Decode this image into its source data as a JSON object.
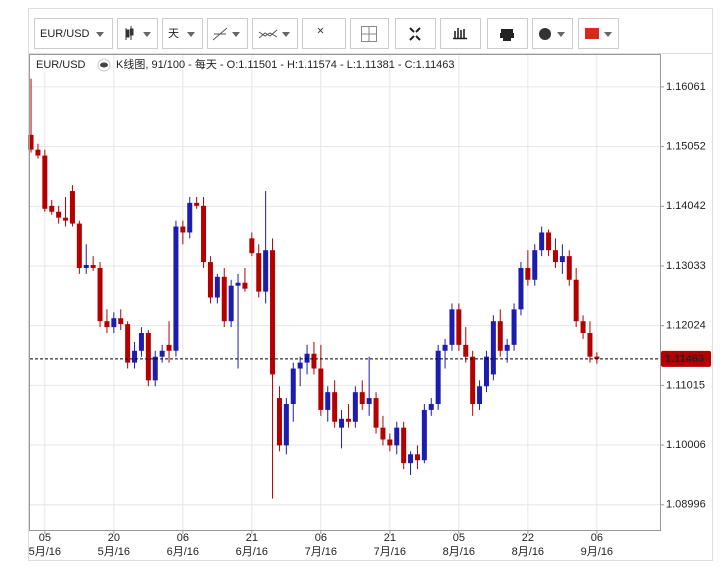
{
  "toolbar": {
    "symbol": "EUR/USD",
    "period": "天"
  },
  "chart_data": {
    "type": "candlestick",
    "legend_symbol": "EUR/USD",
    "legend_text": "K线图, 91/100 - 每天 - O:1.11501 - H:1.11574 - L:1.11381 - C:1.11463",
    "up_color": "#1c1cae",
    "down_color": "#b40000",
    "grid": true,
    "ylim": [
      1.0857,
      1.166
    ],
    "yticks": [
      1.08996,
      1.10006,
      1.11015,
      1.12024,
      1.13033,
      1.14042,
      1.15052,
      1.16061
    ],
    "xlim": [
      -0.15,
      91.15
    ],
    "xticks": [
      {
        "value": 2,
        "label": "05"
      },
      {
        "value": 12,
        "label": "20"
      },
      {
        "value": 22,
        "label": "06"
      },
      {
        "value": 32,
        "label": "21"
      },
      {
        "value": 42,
        "label": "06"
      },
      {
        "value": 52,
        "label": "21"
      },
      {
        "value": 62,
        "label": "05"
      },
      {
        "value": 72,
        "label": "22"
      },
      {
        "value": 82,
        "label": "06"
      }
    ],
    "xtick_months": [
      "5月/16",
      "5月/16",
      "6月/16",
      "6月/16",
      "7月/16",
      "7月/16",
      "8月/16",
      "8月/16",
      "9月/16"
    ],
    "last_price": 1.11463,
    "candles": [
      [
        1.1525,
        1.162,
        1.1495,
        1.15
      ],
      [
        1.15,
        1.151,
        1.1485,
        1.149
      ],
      [
        1.149,
        1.15,
        1.1395,
        1.14
      ],
      [
        1.1405,
        1.1415,
        1.139,
        1.1395
      ],
      [
        1.1395,
        1.1405,
        1.1375,
        1.1385
      ],
      [
        1.1385,
        1.142,
        1.137,
        1.138
      ],
      [
        1.143,
        1.144,
        1.137,
        1.1375
      ],
      [
        1.1375,
        1.138,
        1.129,
        1.13
      ],
      [
        1.13,
        1.134,
        1.129,
        1.1305
      ],
      [
        1.1305,
        1.132,
        1.1295,
        1.13
      ],
      [
        1.13,
        1.131,
        1.12,
        1.121
      ],
      [
        1.121,
        1.123,
        1.119,
        1.12
      ],
      [
        1.12,
        1.1225,
        1.119,
        1.1215
      ],
      [
        1.1215,
        1.123,
        1.1195,
        1.1205
      ],
      [
        1.1205,
        1.121,
        1.113,
        1.114
      ],
      [
        1.114,
        1.1175,
        1.113,
        1.116
      ],
      [
        1.116,
        1.12,
        1.115,
        1.119
      ],
      [
        1.119,
        1.1195,
        1.11,
        1.111
      ],
      [
        1.111,
        1.116,
        1.11,
        1.115
      ],
      [
        1.115,
        1.117,
        1.114,
        1.116
      ],
      [
        1.117,
        1.121,
        1.114,
        1.116
      ],
      [
        1.116,
        1.138,
        1.115,
        1.137
      ],
      [
        1.137,
        1.138,
        1.134,
        1.136
      ],
      [
        1.136,
        1.142,
        1.135,
        1.141
      ],
      [
        1.141,
        1.142,
        1.14,
        1.1405
      ],
      [
        1.1405,
        1.142,
        1.13,
        1.131
      ],
      [
        1.131,
        1.132,
        1.124,
        1.125
      ],
      [
        1.125,
        1.129,
        1.124,
        1.1285
      ],
      [
        1.1285,
        1.13,
        1.12,
        1.121
      ],
      [
        1.121,
        1.128,
        1.12,
        1.127
      ],
      [
        1.127,
        1.129,
        1.113,
        1.1275
      ],
      [
        1.1275,
        1.13,
        1.126,
        1.1265
      ],
      [
        1.135,
        1.136,
        1.132,
        1.1325
      ],
      [
        1.1325,
        1.134,
        1.125,
        1.126
      ],
      [
        1.126,
        1.143,
        1.124,
        1.133
      ],
      [
        1.133,
        1.135,
        1.091,
        1.112
      ],
      [
        1.108,
        1.11,
        1.099,
        1.1
      ],
      [
        1.1,
        1.108,
        1.0985,
        1.107
      ],
      [
        1.107,
        1.114,
        1.104,
        1.113
      ],
      [
        1.113,
        1.115,
        1.11,
        1.114
      ],
      [
        1.114,
        1.117,
        1.112,
        1.1155
      ],
      [
        1.1155,
        1.1175,
        1.112,
        1.113
      ],
      [
        1.113,
        1.117,
        1.105,
        1.106
      ],
      [
        1.106,
        1.11,
        1.104,
        1.109
      ],
      [
        1.109,
        1.111,
        1.103,
        1.104
      ],
      [
        1.103,
        1.106,
        1.0995,
        1.1045
      ],
      [
        1.1045,
        1.107,
        1.103,
        1.104
      ],
      [
        1.104,
        1.11,
        1.103,
        1.109
      ],
      [
        1.109,
        1.111,
        1.106,
        1.107
      ],
      [
        1.107,
        1.115,
        1.105,
        1.108
      ],
      [
        1.108,
        1.109,
        1.102,
        1.103
      ],
      [
        1.103,
        1.105,
        1.1,
        1.101
      ],
      [
        1.101,
        1.102,
        1.099,
        1.1
      ],
      [
        1.1,
        1.104,
        1.0985,
        1.103
      ],
      [
        1.103,
        1.104,
        1.096,
        1.097
      ],
      [
        1.097,
        1.099,
        1.095,
        1.0985
      ],
      [
        1.0985,
        1.1,
        1.096,
        1.0975
      ],
      [
        1.0975,
        1.107,
        1.097,
        1.106
      ],
      [
        1.106,
        1.108,
        1.105,
        1.107
      ],
      [
        1.107,
        1.117,
        1.106,
        1.116
      ],
      [
        1.116,
        1.118,
        1.113,
        1.117
      ],
      [
        1.117,
        1.124,
        1.116,
        1.123
      ],
      [
        1.123,
        1.124,
        1.116,
        1.117
      ],
      [
        1.117,
        1.12,
        1.114,
        1.115
      ],
      [
        1.115,
        1.116,
        1.105,
        1.107
      ],
      [
        1.107,
        1.111,
        1.106,
        1.11
      ],
      [
        1.11,
        1.116,
        1.109,
        1.115
      ],
      [
        1.112,
        1.122,
        1.111,
        1.121
      ],
      [
        1.121,
        1.123,
        1.115,
        1.116
      ],
      [
        1.116,
        1.118,
        1.114,
        1.117
      ],
      [
        1.117,
        1.124,
        1.116,
        1.123
      ],
      [
        1.123,
        1.131,
        1.122,
        1.13
      ],
      [
        1.13,
        1.133,
        1.127,
        1.128
      ],
      [
        1.128,
        1.134,
        1.127,
        1.133
      ],
      [
        1.133,
        1.137,
        1.132,
        1.136
      ],
      [
        1.136,
        1.1365,
        1.132,
        1.133
      ],
      [
        1.133,
        1.135,
        1.13,
        1.131
      ],
      [
        1.131,
        1.134,
        1.129,
        1.132
      ],
      [
        1.132,
        1.133,
        1.127,
        1.128
      ],
      [
        1.128,
        1.13,
        1.12,
        1.121
      ],
      [
        1.121,
        1.122,
        1.118,
        1.119
      ],
      [
        1.119,
        1.121,
        1.114,
        1.115
      ],
      [
        1.11501,
        1.11574,
        1.11381,
        1.11463
      ]
    ]
  }
}
